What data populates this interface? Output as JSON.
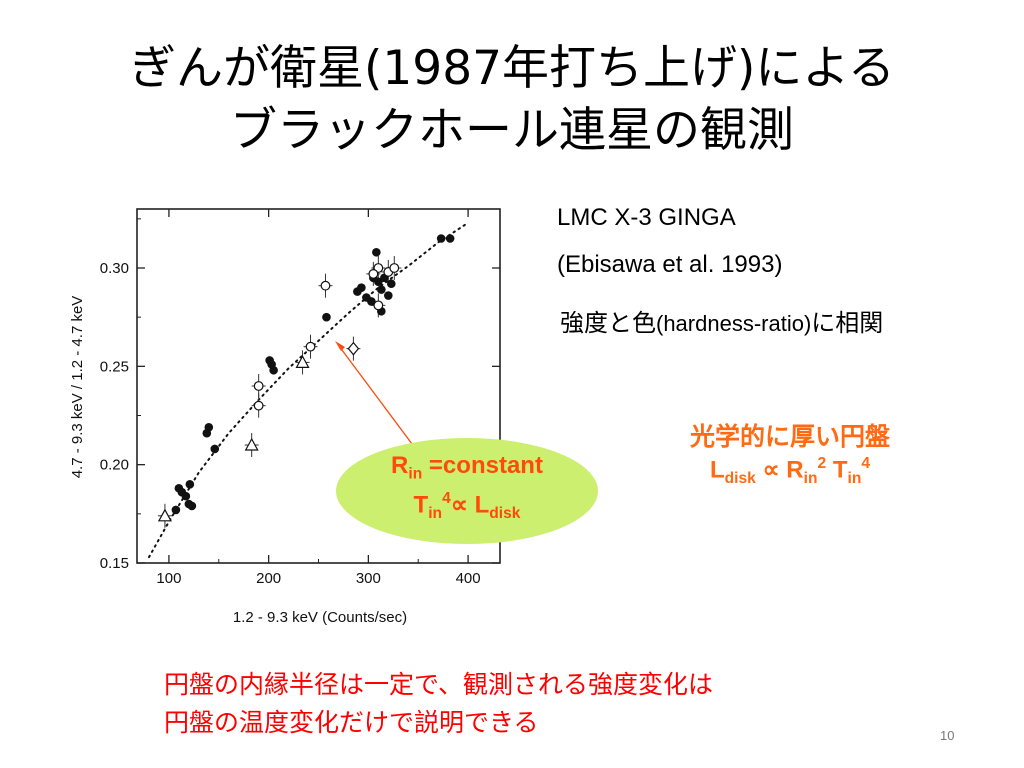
{
  "slide": {
    "title_line1": "ぎんが衛星(1987年打ち上げ)による",
    "title_line2": "ブラックホール連星の観測",
    "ref_line1": "LMC X-3 GINGA",
    "ref_line2": "(Ebisawa et al. 1993)",
    "corr_ja1": "強度と色",
    "corr_latin": "(hardness-ratio)",
    "corr_ja2": "に相関",
    "disk_title": "光学的に厚い円盤",
    "disk_L": "L",
    "disk_L_sub": "disk",
    "disk_prop": " ∝ R",
    "disk_R_sub": "in",
    "disk_R_sup": "2",
    "disk_T": " T",
    "disk_T_sub": "in",
    "disk_T_sup": "4",
    "ell_R": "R",
    "ell_R_sub": "in",
    "ell_const": " =constant",
    "ell_T": "T",
    "ell_T_sub": "in",
    "ell_T_sup": "4",
    "ell_prop": "∝ L",
    "ell_L_sub": "disk",
    "conclusion_line1": "円盤の内縁半径は一定で、観測される強度変化は",
    "conclusion_line2": "円盤の温度変化だけで説明できる",
    "page_number": "10",
    "colors": {
      "orange": "#ff6a13",
      "red": "#ff0000",
      "ellipse": "#ccef70"
    }
  },
  "chart_data": {
    "type": "scatter",
    "title": "",
    "xlabel": "1.2 - 9.3 keV (Counts/sec)",
    "ylabel": "4.7 - 9.3 keV / 1.2 - 4.7 keV",
    "xlim": [
      68,
      432
    ],
    "ylim": [
      0.15,
      0.33
    ],
    "x_ticks": [
      100,
      200,
      300,
      400
    ],
    "y_ticks": [
      0.15,
      0.2,
      0.25,
      0.3
    ],
    "x_tick_labels": [
      "100",
      "200",
      "300",
      "400"
    ],
    "y_tick_labels": [
      "0.15",
      "0.20",
      "0.25",
      "0.30"
    ],
    "series": [
      {
        "marker": "filled-circle",
        "points": [
          {
            "x": 107,
            "y": 0.177
          },
          {
            "x": 110,
            "y": 0.188
          },
          {
            "x": 113,
            "y": 0.186
          },
          {
            "x": 117,
            "y": 0.184
          },
          {
            "x": 120,
            "y": 0.18
          },
          {
            "x": 123,
            "y": 0.179
          },
          {
            "x": 121,
            "y": 0.19
          },
          {
            "x": 138,
            "y": 0.216
          },
          {
            "x": 140,
            "y": 0.219
          },
          {
            "x": 146,
            "y": 0.208
          },
          {
            "x": 201,
            "y": 0.253
          },
          {
            "x": 203,
            "y": 0.251
          },
          {
            "x": 205,
            "y": 0.248
          },
          {
            "x": 258,
            "y": 0.275
          },
          {
            "x": 289,
            "y": 0.288
          },
          {
            "x": 293,
            "y": 0.29
          },
          {
            "x": 298,
            "y": 0.285
          },
          {
            "x": 303,
            "y": 0.283
          },
          {
            "x": 305,
            "y": 0.295
          },
          {
            "x": 308,
            "y": 0.308
          },
          {
            "x": 310,
            "y": 0.293
          },
          {
            "x": 313,
            "y": 0.289
          },
          {
            "x": 316,
            "y": 0.295
          },
          {
            "x": 320,
            "y": 0.286
          },
          {
            "x": 323,
            "y": 0.292
          },
          {
            "x": 313,
            "y": 0.278
          },
          {
            "x": 373,
            "y": 0.315
          },
          {
            "x": 382,
            "y": 0.315
          }
        ]
      },
      {
        "marker": "open-circle",
        "points": [
          {
            "x": 190,
            "y": 0.24
          },
          {
            "x": 190,
            "y": 0.23
          },
          {
            "x": 242,
            "y": 0.26
          },
          {
            "x": 257,
            "y": 0.291
          },
          {
            "x": 310,
            "y": 0.3
          },
          {
            "x": 310,
            "y": 0.281
          },
          {
            "x": 320,
            "y": 0.298
          },
          {
            "x": 326,
            "y": 0.3
          },
          {
            "x": 305,
            "y": 0.297
          }
        ]
      },
      {
        "marker": "open-triangle",
        "points": [
          {
            "x": 96,
            "y": 0.174
          },
          {
            "x": 183,
            "y": 0.21
          },
          {
            "x": 234,
            "y": 0.252
          }
        ]
      },
      {
        "marker": "open-diamond",
        "points": [
          {
            "x": 285,
            "y": 0.259
          }
        ]
      }
    ],
    "fit_curve": {
      "style": "dotted",
      "points": [
        {
          "x": 80,
          "y": 0.153
        },
        {
          "x": 100,
          "y": 0.171
        },
        {
          "x": 130,
          "y": 0.196
        },
        {
          "x": 160,
          "y": 0.216
        },
        {
          "x": 190,
          "y": 0.233
        },
        {
          "x": 220,
          "y": 0.249
        },
        {
          "x": 250,
          "y": 0.263
        },
        {
          "x": 280,
          "y": 0.277
        },
        {
          "x": 310,
          "y": 0.29
        },
        {
          "x": 340,
          "y": 0.301
        },
        {
          "x": 370,
          "y": 0.313
        },
        {
          "x": 400,
          "y": 0.323
        }
      ]
    },
    "grid": false
  }
}
